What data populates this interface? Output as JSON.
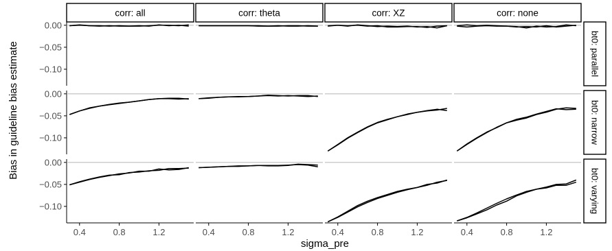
{
  "chart_data": {
    "type": "line",
    "facet_columns": [
      "corr: all",
      "corr: theta",
      "corr: XZ",
      "corr: none"
    ],
    "facet_rows": [
      "bt0: parallel",
      "bt0: narrow",
      "bt0: varying"
    ],
    "xlabel": "sigma_pre",
    "ylabel": "Bias in guideline bias estimate",
    "x_ticks": [
      0.4,
      0.8,
      1.2
    ],
    "x_tick_labels": [
      "0.4",
      "0.8",
      "1.2"
    ],
    "y_ticks": [
      0.0,
      -0.05,
      -0.1
    ],
    "y_tick_labels": [
      "0.00",
      "−0.05",
      "−0.10"
    ],
    "xlim": [
      0.27,
      1.55
    ],
    "ylim": [
      -0.1375,
      0.0075
    ],
    "reference_line_y": 0.0,
    "grid": false,
    "x": [
      0.3,
      0.4,
      0.5,
      0.6,
      0.7,
      0.8,
      0.9,
      1.0,
      1.1,
      1.2,
      1.3,
      1.4,
      1.5
    ],
    "panels": [
      {
        "row": 0,
        "col": 0,
        "series": [
          {
            "values": [
              -0.001,
              0.0,
              -0.001,
              -0.001,
              -0.002,
              -0.001,
              -0.002,
              -0.002,
              -0.001,
              0.0,
              0.0,
              -0.001,
              0.001
            ]
          },
          {
            "values": [
              -0.001,
              0.001,
              -0.001,
              -0.002,
              -0.001,
              -0.002,
              -0.002,
              -0.001,
              -0.002,
              0.001,
              -0.001,
              0.0,
              -0.002
            ]
          }
        ]
      },
      {
        "row": 0,
        "col": 1,
        "series": [
          {
            "values": [
              -0.001,
              -0.001,
              -0.001,
              -0.001,
              -0.001,
              -0.001,
              -0.001,
              -0.002,
              -0.002,
              -0.001,
              -0.001,
              -0.002,
              -0.002
            ]
          },
          {
            "values": [
              -0.001,
              -0.001,
              -0.001,
              -0.001,
              -0.001,
              -0.001,
              -0.002,
              -0.002,
              -0.001,
              -0.002,
              -0.002,
              -0.001,
              -0.002
            ]
          }
        ]
      },
      {
        "row": 0,
        "col": 2,
        "series": [
          {
            "values": [
              -0.002,
              0.0,
              -0.002,
              0.001,
              -0.001,
              -0.003,
              -0.002,
              -0.003,
              -0.002,
              -0.004,
              -0.003,
              -0.006,
              -0.001
            ]
          },
          {
            "values": [
              -0.001,
              0.0,
              -0.001,
              0.0,
              -0.002,
              -0.001,
              -0.004,
              -0.004,
              -0.003,
              -0.003,
              -0.005,
              -0.002,
              -0.001
            ]
          }
        ]
      },
      {
        "row": 0,
        "col": 3,
        "series": [
          {
            "values": [
              -0.001,
              0.001,
              -0.001,
              0.0,
              -0.001,
              -0.002,
              -0.003,
              -0.006,
              -0.002,
              -0.004,
              -0.003,
              0.001,
              -0.001
            ]
          },
          {
            "values": [
              -0.002,
              -0.004,
              -0.002,
              -0.001,
              -0.002,
              -0.002,
              -0.004,
              -0.003,
              -0.004,
              -0.001,
              -0.004,
              -0.002,
              0.0
            ]
          }
        ]
      },
      {
        "row": 1,
        "col": 0,
        "series": [
          {
            "values": [
              -0.047,
              -0.039,
              -0.033,
              -0.028,
              -0.025,
              -0.022,
              -0.019,
              -0.016,
              -0.013,
              -0.011,
              -0.011,
              -0.012,
              -0.011
            ]
          },
          {
            "values": [
              -0.047,
              -0.039,
              -0.032,
              -0.028,
              -0.024,
              -0.021,
              -0.019,
              -0.016,
              -0.013,
              -0.011,
              -0.01,
              -0.01,
              -0.012
            ]
          }
        ]
      },
      {
        "row": 1,
        "col": 1,
        "series": [
          {
            "values": [
              -0.011,
              -0.009,
              -0.008,
              -0.007,
              -0.006,
              -0.006,
              -0.005,
              -0.004,
              -0.005,
              -0.004,
              -0.005,
              -0.006,
              -0.005
            ]
          },
          {
            "values": [
              -0.011,
              -0.01,
              -0.008,
              -0.007,
              -0.007,
              -0.006,
              -0.005,
              -0.003,
              -0.004,
              -0.005,
              -0.004,
              -0.004,
              -0.006
            ]
          }
        ]
      },
      {
        "row": 1,
        "col": 2,
        "series": [
          {
            "values": [
              -0.13,
              -0.115,
              -0.1,
              -0.087,
              -0.075,
              -0.065,
              -0.058,
              -0.052,
              -0.047,
              -0.042,
              -0.039,
              -0.037,
              -0.033
            ]
          },
          {
            "values": [
              -0.13,
              -0.116,
              -0.101,
              -0.088,
              -0.076,
              -0.066,
              -0.059,
              -0.052,
              -0.046,
              -0.042,
              -0.038,
              -0.035,
              -0.038
            ]
          }
        ]
      },
      {
        "row": 1,
        "col": 3,
        "series": [
          {
            "values": [
              -0.13,
              -0.114,
              -0.1,
              -0.087,
              -0.077,
              -0.066,
              -0.058,
              -0.053,
              -0.046,
              -0.04,
              -0.034,
              -0.036,
              -0.035
            ]
          },
          {
            "values": [
              -0.13,
              -0.115,
              -0.101,
              -0.088,
              -0.076,
              -0.066,
              -0.06,
              -0.055,
              -0.047,
              -0.042,
              -0.035,
              -0.032,
              -0.033
            ]
          }
        ]
      },
      {
        "row": 2,
        "col": 0,
        "series": [
          {
            "values": [
              -0.051,
              -0.045,
              -0.039,
              -0.034,
              -0.03,
              -0.026,
              -0.024,
              -0.02,
              -0.02,
              -0.015,
              -0.017,
              -0.016,
              -0.012
            ]
          },
          {
            "values": [
              -0.051,
              -0.044,
              -0.038,
              -0.033,
              -0.029,
              -0.028,
              -0.023,
              -0.022,
              -0.019,
              -0.018,
              -0.014,
              -0.014,
              -0.013
            ]
          }
        ]
      },
      {
        "row": 2,
        "col": 1,
        "series": [
          {
            "values": [
              -0.012,
              -0.011,
              -0.01,
              -0.009,
              -0.009,
              -0.008,
              -0.007,
              -0.007,
              -0.007,
              -0.006,
              -0.005,
              -0.006,
              -0.01
            ]
          },
          {
            "values": [
              -0.012,
              -0.011,
              -0.01,
              -0.009,
              -0.008,
              -0.008,
              -0.007,
              -0.008,
              -0.008,
              -0.007,
              -0.004,
              -0.005,
              -0.006
            ]
          }
        ]
      },
      {
        "row": 2,
        "col": 2,
        "series": [
          {
            "values": [
              -0.135,
              -0.124,
              -0.111,
              -0.098,
              -0.088,
              -0.08,
              -0.073,
              -0.066,
              -0.061,
              -0.057,
              -0.052,
              -0.045,
              -0.041
            ]
          },
          {
            "values": [
              -0.135,
              -0.125,
              -0.113,
              -0.101,
              -0.091,
              -0.082,
              -0.075,
              -0.068,
              -0.062,
              -0.057,
              -0.05,
              -0.047,
              -0.04
            ]
          }
        ]
      },
      {
        "row": 2,
        "col": 3,
        "series": [
          {
            "values": [
              -0.133,
              -0.126,
              -0.117,
              -0.108,
              -0.097,
              -0.088,
              -0.076,
              -0.068,
              -0.061,
              -0.056,
              -0.05,
              -0.049,
              -0.04
            ]
          },
          {
            "values": [
              -0.133,
              -0.125,
              -0.115,
              -0.104,
              -0.093,
              -0.083,
              -0.074,
              -0.066,
              -0.061,
              -0.058,
              -0.052,
              -0.052,
              -0.045
            ]
          }
        ]
      }
    ]
  }
}
